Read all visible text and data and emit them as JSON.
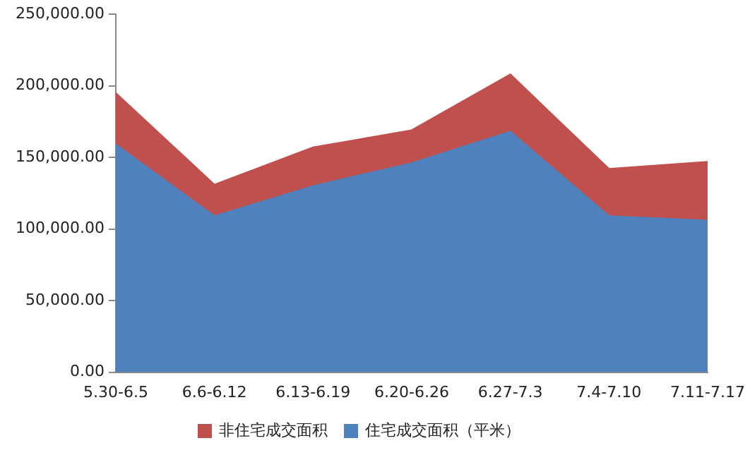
{
  "chart_data": {
    "type": "area",
    "stacked": true,
    "categories": [
      "5.30-6.5",
      "6.6-6.12",
      "6.13-6.19",
      "6.20-6.26",
      "6.27-7.3",
      "7.4-7.10",
      "7.11-7.17"
    ],
    "series": [
      {
        "name": "住宅成交面积（平米）",
        "color": "#4f81bd",
        "values": [
          159000,
          109000,
          130000,
          146000,
          168000,
          109000,
          106000
        ]
      },
      {
        "name": "非住宅成交面积",
        "color": "#c0504d",
        "values": [
          36000,
          22000,
          27000,
          23000,
          40000,
          33000,
          41000
        ]
      }
    ],
    "ylim": [
      0,
      250000
    ],
    "yticks": [
      {
        "value": 0,
        "label": "0.00"
      },
      {
        "value": 50000,
        "label": "50,000.00"
      },
      {
        "value": 100000,
        "label": "100,000.00"
      },
      {
        "value": 150000,
        "label": "150,000.00"
      },
      {
        "value": 200000,
        "label": "200,000.00"
      },
      {
        "value": 250000,
        "label": "250,000.00"
      }
    ],
    "grid": false,
    "legend": "bottom"
  }
}
